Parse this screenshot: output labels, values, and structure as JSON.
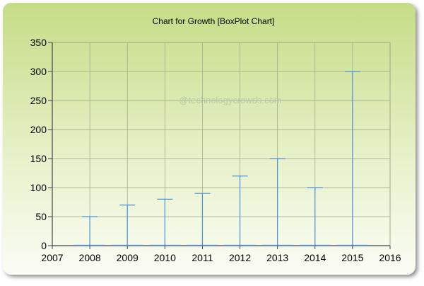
{
  "chart_data": {
    "type": "box",
    "title": "Chart for Growth [BoxPlot Chart]",
    "watermark": "@technologycrowds.com",
    "xlabel": "",
    "ylabel": "",
    "xlim": [
      2007,
      2016
    ],
    "ylim": [
      0,
      350
    ],
    "x_ticks": [
      2007,
      2008,
      2009,
      2010,
      2011,
      2012,
      2013,
      2014,
      2015,
      2016
    ],
    "y_ticks": [
      0,
      50,
      100,
      150,
      200,
      250,
      300,
      350
    ],
    "grid": true,
    "series": [
      {
        "x": [
          2008,
          2009,
          2010,
          2011,
          2012,
          2013,
          2014,
          2015
        ],
        "low": [
          0,
          0,
          0,
          0,
          0,
          0,
          0,
          0
        ],
        "high": [
          50,
          70,
          80,
          90,
          120,
          150,
          100,
          300
        ]
      }
    ],
    "colors": {
      "box": "#4a90d9",
      "grid": "#9aa585",
      "axis": "#444444"
    }
  }
}
